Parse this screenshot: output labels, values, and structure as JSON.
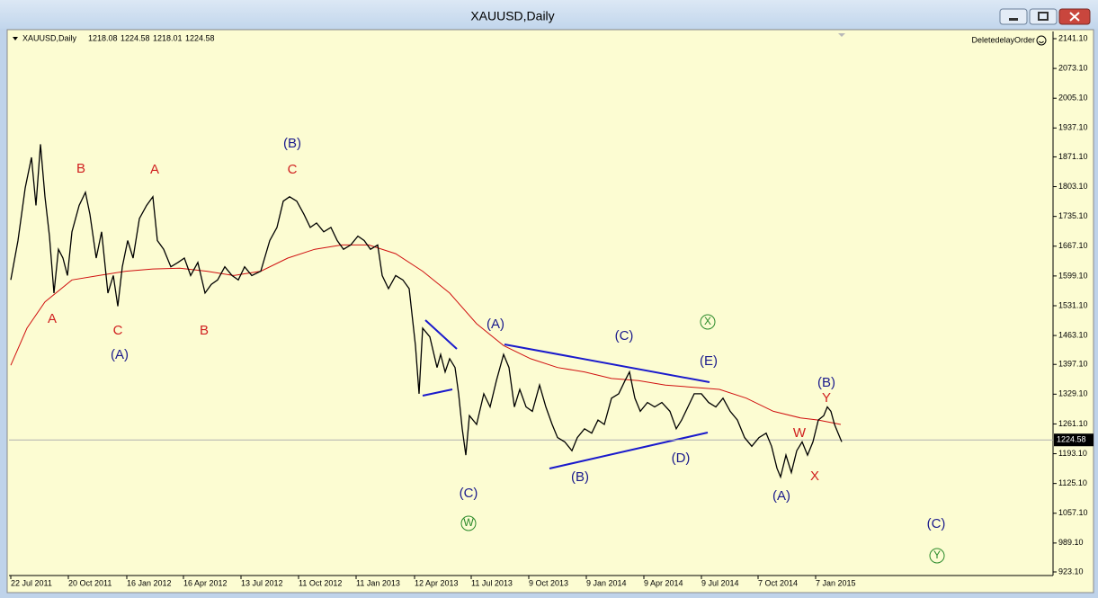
{
  "window": {
    "title": "XAUUSD,Daily"
  },
  "chart_data": {
    "type": "line",
    "header": {
      "symbol": "XAUUSD,Daily",
      "ohlc": [
        1218.08,
        1224.58,
        1218.01,
        1224.58
      ]
    },
    "expert": "DeletedelayOrder",
    "last_price": 1224.58,
    "xlim": [
      0,
      1161
    ],
    "xticks": [
      {
        "value": 2,
        "label": "22 Jul 2011"
      },
      {
        "value": 66,
        "label": "20 Oct 2011"
      },
      {
        "value": 131,
        "label": "16 Jan 2012"
      },
      {
        "value": 194,
        "label": "16 Apr 2012"
      },
      {
        "value": 258,
        "label": "13 Jul 2012"
      },
      {
        "value": 322,
        "label": "11 Oct 2012"
      },
      {
        "value": 386,
        "label": "11 Jan 2013"
      },
      {
        "value": 451,
        "label": "12 Apr 2013"
      },
      {
        "value": 514,
        "label": "11 Jul 2013"
      },
      {
        "value": 578,
        "label": "9 Oct 2013"
      },
      {
        "value": 642,
        "label": "9 Jan 2014"
      },
      {
        "value": 706,
        "label": "9 Apr 2014"
      },
      {
        "value": 770,
        "label": "9 Jul 2014"
      },
      {
        "value": 833,
        "label": "7 Oct 2014"
      },
      {
        "value": 897,
        "label": "7 Jan 2015"
      }
    ],
    "ylim": [
      914.88,
      2157.53
    ],
    "yticks": [
      {
        "value": 2141.1,
        "label": "2141.10"
      },
      {
        "value": 2073.1,
        "label": "2073.10"
      },
      {
        "value": 2005.1,
        "label": "2005.10"
      },
      {
        "value": 1937.1,
        "label": "1937.10"
      },
      {
        "value": 1871.1,
        "label": "1871.10"
      },
      {
        "value": 1803.1,
        "label": "1803.10"
      },
      {
        "value": 1735.1,
        "label": "1735.10"
      },
      {
        "value": 1667.1,
        "label": "1667.10"
      },
      {
        "value": 1599.1,
        "label": "1599.10"
      },
      {
        "value": 1531.1,
        "label": "1531.10"
      },
      {
        "value": 1463.1,
        "label": "1463.10"
      },
      {
        "value": 1397.1,
        "label": "1397.10"
      },
      {
        "value": 1329.1,
        "label": "1329.10"
      },
      {
        "value": 1261.1,
        "label": "1261.10"
      },
      {
        "value": 1193.1,
        "label": "1193.10"
      },
      {
        "value": 1125.1,
        "label": "1125.10"
      },
      {
        "value": 1057.1,
        "label": "1057.10"
      },
      {
        "value": 989.1,
        "label": "989.10"
      },
      {
        "value": 923.1,
        "label": "923.10"
      }
    ],
    "series": [
      {
        "color": "#000000",
        "x": [
          2,
          10,
          18,
          25,
          30,
          35,
          40,
          45,
          50,
          55,
          60,
          65,
          70,
          78,
          85,
          90,
          97,
          103,
          110,
          116,
          121,
          126,
          132,
          138,
          145,
          153,
          160,
          165,
          172,
          180,
          188,
          195,
          202,
          210,
          218,
          225,
          232,
          240,
          248,
          255,
          262,
          270,
          280,
          290,
          298,
          305,
          312,
          320,
          328,
          335,
          342,
          350,
          358,
          365,
          372,
          380,
          388,
          395,
          402,
          410,
          415,
          422,
          430,
          438,
          445,
          452,
          456,
          460,
          468,
          476,
          480,
          485,
          490,
          496,
          500,
          504,
          508,
          512,
          520,
          528,
          535,
          542,
          550,
          556,
          562,
          568,
          575,
          582,
          590,
          597,
          604,
          610,
          618,
          626,
          632,
          640,
          648,
          655,
          662,
          670,
          678,
          685,
          690,
          696,
          702,
          710,
          718,
          726,
          735,
          742,
          748,
          755,
          762,
          770,
          778,
          786,
          794,
          802,
          810,
          818,
          826,
          834,
          842,
          848,
          854,
          858,
          864,
          870,
          876,
          882,
          888,
          894,
          900,
          906,
          910,
          914,
          918,
          922,
          926
        ],
        "values": [
          1590,
          1680,
          1800,
          1870,
          1760,
          1900,
          1780,
          1690,
          1560,
          1660,
          1640,
          1600,
          1700,
          1760,
          1790,
          1740,
          1640,
          1700,
          1560,
          1600,
          1530,
          1620,
          1680,
          1640,
          1730,
          1760,
          1780,
          1680,
          1660,
          1620,
          1630,
          1640,
          1600,
          1630,
          1560,
          1580,
          1590,
          1620,
          1600,
          1590,
          1620,
          1600,
          1610,
          1680,
          1710,
          1770,
          1780,
          1770,
          1740,
          1710,
          1720,
          1700,
          1710,
          1680,
          1660,
          1670,
          1690,
          1680,
          1660,
          1670,
          1600,
          1570,
          1600,
          1590,
          1570,
          1440,
          1330,
          1480,
          1460,
          1390,
          1420,
          1380,
          1410,
          1390,
          1330,
          1250,
          1190,
          1280,
          1260,
          1330,
          1300,
          1360,
          1420,
          1390,
          1300,
          1340,
          1300,
          1290,
          1350,
          1300,
          1260,
          1230,
          1220,
          1200,
          1230,
          1250,
          1240,
          1270,
          1260,
          1320,
          1330,
          1360,
          1380,
          1320,
          1290,
          1310,
          1300,
          1310,
          1290,
          1250,
          1270,
          1300,
          1330,
          1330,
          1310,
          1300,
          1320,
          1290,
          1270,
          1230,
          1210,
          1230,
          1240,
          1210,
          1160,
          1140,
          1190,
          1150,
          1200,
          1220,
          1190,
          1220,
          1270,
          1280,
          1300,
          1290,
          1260,
          1240,
          1220
        ]
      },
      {
        "color": "#d01010",
        "x": [
          2,
          20,
          40,
          70,
          100,
          130,
          160,
          190,
          220,
          250,
          280,
          310,
          340,
          370,
          400,
          430,
          460,
          490,
          520,
          550,
          580,
          610,
          640,
          670,
          700,
          730,
          760,
          790,
          820,
          850,
          880,
          900,
          925
        ],
        "values": [
          1395,
          1480,
          1540,
          1590,
          1600,
          1610,
          1615,
          1617,
          1610,
          1600,
          1610,
          1640,
          1660,
          1670,
          1670,
          1650,
          1610,
          1560,
          1490,
          1440,
          1410,
          1390,
          1380,
          1365,
          1360,
          1350,
          1345,
          1340,
          1320,
          1290,
          1275,
          1270,
          1260
        ]
      }
    ],
    "annotations": [
      {
        "text": "A",
        "color": "#d02020"
      },
      {
        "text": "B",
        "color": "#d02020"
      },
      {
        "text": "C",
        "color": "#d02020"
      },
      {
        "text": "A",
        "color": "#d02020"
      },
      {
        "text": "B",
        "color": "#d02020"
      },
      {
        "text": "C",
        "color": "#d02020"
      },
      {
        "text": "W",
        "color": "#d02020"
      },
      {
        "text": "X",
        "color": "#d02020"
      },
      {
        "text": "Y",
        "color": "#d02020"
      },
      {
        "text": "(A)",
        "color": "#1a1a8c"
      },
      {
        "text": "(B)",
        "color": "#1a1a8c"
      },
      {
        "text": "(C)",
        "color": "#1a1a8c"
      },
      {
        "text": "(A)",
        "color": "#1a1a8c"
      },
      {
        "text": "(C)",
        "color": "#1a1a8c"
      },
      {
        "text": "(B)",
        "color": "#1a1a8c"
      },
      {
        "text": "(D)",
        "color": "#1a1a8c"
      },
      {
        "text": "(E)",
        "color": "#1a1a8c"
      },
      {
        "text": "(A)",
        "color": "#1a1a8c"
      },
      {
        "text": "(B)",
        "color": "#1a1a8c"
      },
      {
        "text": "(C)",
        "color": "#1a1a8c"
      },
      {
        "text": "W",
        "color": "#2a8a2a"
      },
      {
        "text": "X",
        "color": "#2a8a2a"
      },
      {
        "text": "Y",
        "color": "#2a8a2a"
      }
    ]
  }
}
